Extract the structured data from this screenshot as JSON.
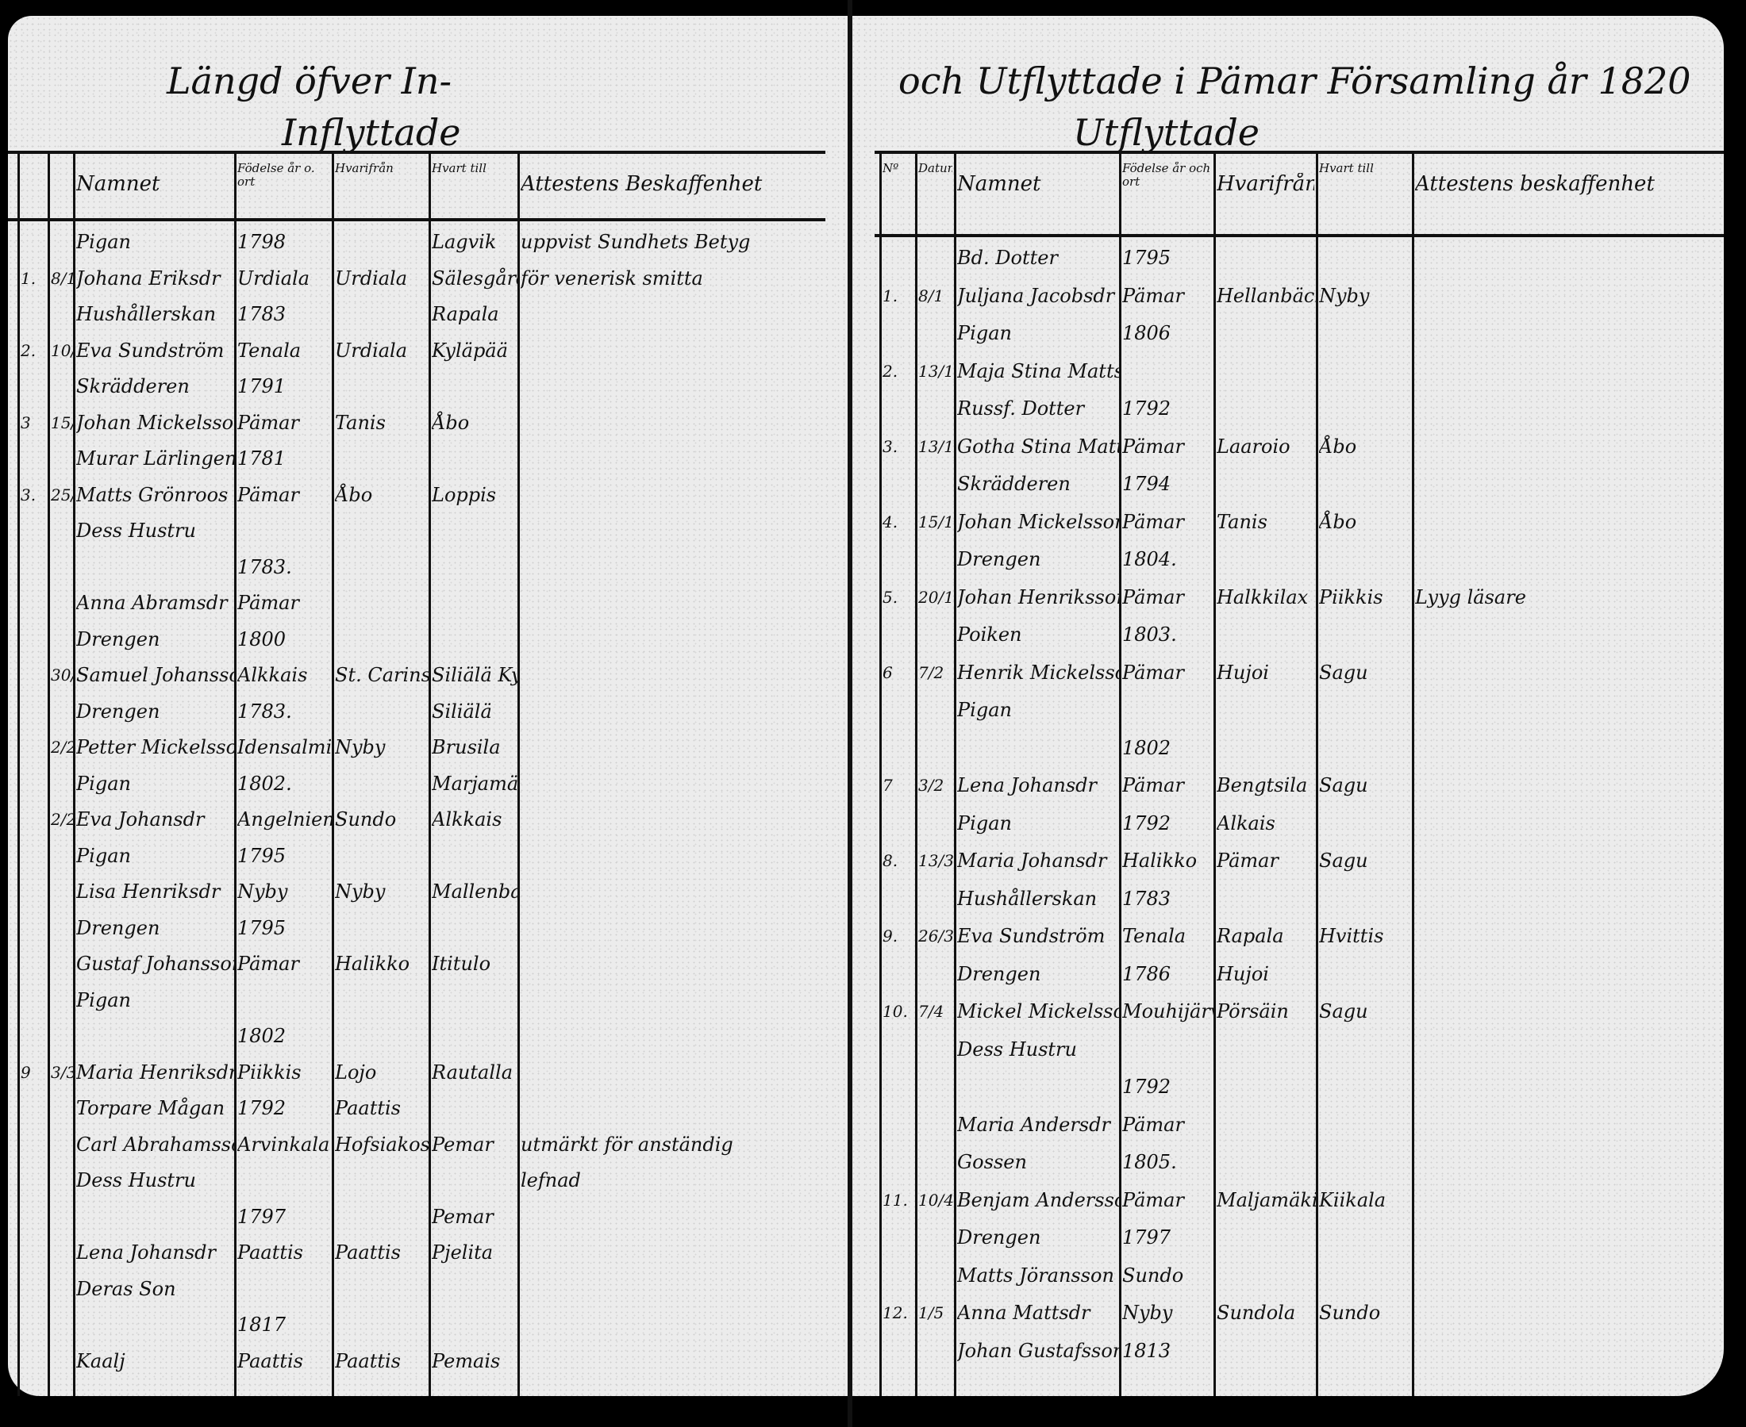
{
  "left_page": {
    "title_line1": "Längd öfver In-",
    "title_line2": "Inflyttade",
    "headers": {
      "nr": "",
      "date": "",
      "name": "Namnet",
      "born": "Födelse år o. ort",
      "from": "Hvarifrån",
      "to": "Hvart till",
      "remarks": "Attestens Beskaffenhet"
    },
    "lines": [
      {
        "name": "Pigan",
        "born": "1798",
        "to": "Lagvik",
        "remarks": "uppvist Sundhets Betyg"
      },
      {
        "nr": "1.",
        "date": "8/1",
        "name": "Johana Eriksdr",
        "born": "Urdiala",
        "from": "Urdiala",
        "to": "Sälesgård",
        "remarks": "för venerisk smitta"
      },
      {
        "name": "Hushållerskan",
        "born": "1783",
        "to": "Rapala"
      },
      {
        "nr": "2.",
        "date": "10/1",
        "name": "Eva Sundström",
        "born": "Tenala",
        "from": "Urdiala",
        "to": "Kyläpää"
      },
      {
        "name": "Skrädderen",
        "born": "1791",
        "struck": true
      },
      {
        "nr": "3",
        "date": "15/1",
        "name": "Johan Mickelsson",
        "born": "Pämar",
        "from": "Tanis",
        "to": "Åbo",
        "struck": true
      },
      {
        "name": "Murar Lärlingen",
        "born": "1781"
      },
      {
        "nr": "3.",
        "date": "25/1",
        "name": "Matts Grönroos",
        "born": "Pämar",
        "from": "Åbo",
        "to": "Loppis"
      },
      {
        "name": "Dess Hustru"
      },
      {
        "born": "1783."
      },
      {
        "name": "Anna Abramsdr",
        "born": "Pämar"
      },
      {
        "name": "Drengen",
        "born": "1800"
      },
      {
        "date": "30/1",
        "name": "Samuel Johansson",
        "born": "Alkkais",
        "from": "St. Carins",
        "to": "Siliälä Kyttkylä"
      },
      {
        "name": "Drengen",
        "born": "1783.",
        "to": "Siliälä"
      },
      {
        "date": "2/2",
        "name": "Petter Mickelsson",
        "born": "Idensalmi",
        "from": "Nyby",
        "to": "Brusila"
      },
      {
        "name": "Pigan",
        "born": "1802.",
        "to": "Marjamäki"
      },
      {
        "date": "2/2",
        "name": "Eva Johansdr",
        "born": "Angelniemi",
        "from": "Sundo",
        "to": "Alkkais"
      },
      {
        "name": "Pigan",
        "born": "1795"
      },
      {
        "name": "Lisa Henriksdr",
        "born": "Nyby",
        "from": "Nyby",
        "to": "Mallenbacka"
      },
      {
        "name": "Drengen",
        "born": "1795"
      },
      {
        "name": "Gustaf Johansson",
        "born": "Pämar",
        "from": "Halikko",
        "to": "Ititulo"
      },
      {
        "name": "Pigan"
      },
      {
        "born": "1802"
      },
      {
        "nr": "9",
        "date": "3/3",
        "name": "Maria Henriksdr",
        "born": "Piikkis",
        "from": "Lojo",
        "to": "Rautalla"
      },
      {
        "name": "Torpare Mågan",
        "born": "1792",
        "from": "Paattis"
      },
      {
        "name": "Carl Abrahamsson",
        "born": "Arvinkala",
        "from": "Hofsiakoski",
        "to": "Pemar",
        "remarks": "utmärkt för anständig"
      },
      {
        "name": "Dess Hustru",
        "remarks": "lefnad"
      },
      {
        "born": "1797",
        "to": "Pemar"
      },
      {
        "name": "Lena Johansdr",
        "born": "Paattis",
        "from": "Paattis",
        "to": "Pjelita"
      },
      {
        "name": "Deras Son"
      },
      {
        "born": "1817"
      },
      {
        "name": "Kaalj",
        "born": "Paattis",
        "from": "Paattis",
        "to": "Pemais"
      }
    ]
  },
  "right_page": {
    "title_line1": "och Utflyttade i Pämar Församling år 1820",
    "title_line2": "Utflyttade",
    "headers": {
      "nr": "Nº",
      "date": "Datum",
      "name": "Namnet",
      "born": "Födelse år och ort",
      "from": "Hvarifrån",
      "to": "Hvart till",
      "remarks": "Attestens beskaffenhet"
    },
    "lines": [
      {
        "name": "Bd. Dotter",
        "born": "1795"
      },
      {
        "nr": "1.",
        "date": "8/1",
        "name": "Juljana Jacobsdr",
        "born": "Pämar",
        "from": "Hellanbäck",
        "to": "Nyby"
      },
      {
        "name": "Pigan",
        "born": "1806"
      },
      {
        "nr": "2.",
        "date": "13/1",
        "name": "Maja Stina Mattsdr"
      },
      {
        "name": "Russf. Dotter",
        "born": "1792"
      },
      {
        "nr": "3.",
        "date": "13/1",
        "name": "Gotha Stina Mattsdr",
        "born": "Pämar",
        "from": "Laaroio",
        "to": "Åbo"
      },
      {
        "name": "Skrädderen",
        "born": "1794"
      },
      {
        "nr": "4.",
        "date": "15/1",
        "name": "Johan Mickelsson",
        "born": "Pämar",
        "from": "Tanis",
        "to": "Åbo"
      },
      {
        "name": "Drengen",
        "born": "1804."
      },
      {
        "nr": "5.",
        "date": "20/1",
        "name": "Johan Henriksson",
        "born": "Pämar",
        "from": "Halkkilax",
        "to": "Piikkis",
        "remarks": "Lyyg läsare"
      },
      {
        "name": "Poiken",
        "born": "1803."
      },
      {
        "nr": "6",
        "date": "7/2",
        "name": "Henrik Mickelsson",
        "born": "Pämar",
        "from": "Hujoi",
        "to": "Sagu"
      },
      {
        "name": "Pigan"
      },
      {
        "born": "1802"
      },
      {
        "nr": "7",
        "date": "3/2",
        "name": "Lena Johansdr",
        "born": "Pämar",
        "from": "Bengtsila",
        "to": "Sagu"
      },
      {
        "name": "Pigan",
        "born": "1792",
        "from": "Alkais"
      },
      {
        "nr": "8.",
        "date": "13/3",
        "name": "Maria Johansdr",
        "born": "Halikko",
        "from": "Pämar",
        "to": "Sagu"
      },
      {
        "name": "Hushållerskan",
        "born": "1783"
      },
      {
        "nr": "9.",
        "date": "26/3",
        "name": "Eva Sundström",
        "born": "Tenala",
        "from": "Rapala",
        "to": "Hvittis"
      },
      {
        "name": "Drengen",
        "born": "1786",
        "from": "Hujoi"
      },
      {
        "nr": "10.",
        "date": "7/4",
        "name": "Mickel Mickelsson",
        "born": "Mouhijärvi",
        "from": "Pörsäin",
        "to": "Sagu"
      },
      {
        "name": "Dess Hustru"
      },
      {
        "born": "1792"
      },
      {
        "name": "Maria Andersdr",
        "born": "Pämar"
      },
      {
        "name": "Gossen",
        "born": "1805."
      },
      {
        "nr": "11.",
        "date": "10/4",
        "name": "Benjam Andersson",
        "born": "Pämar",
        "from": "Maljamäki",
        "to": "Kiikala"
      },
      {
        "name": "Drengen",
        "born": "1797"
      },
      {
        "name": "Matts Jöransson",
        "born": "Sundo"
      },
      {
        "nr": "12.",
        "date": "1/5",
        "name": "Anna Mattsdr",
        "born": "Nyby",
        "from": "Sundola",
        "to": "Sundo"
      },
      {
        "name": "Johan Gustafsson",
        "born": "1813"
      }
    ]
  }
}
